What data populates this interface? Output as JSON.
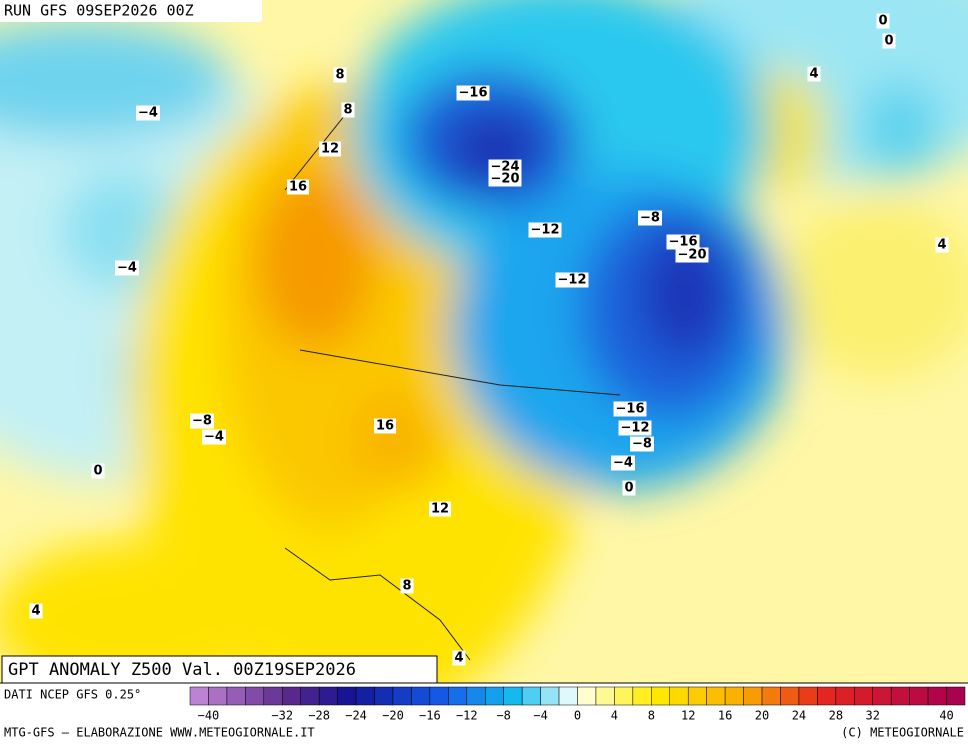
{
  "header": {
    "run": "RUN GFS 09SEP2026 00Z"
  },
  "map": {
    "title": "GPT ANOMALY Z500 Val. 00Z19SEP2026",
    "contour_labels": [
      "0",
      "0",
      "8",
      "4",
      "−16",
      "8",
      "−4",
      "12",
      "−24",
      "−20",
      "16",
      "−8",
      "−12",
      "−16",
      "4",
      "−20",
      "−4",
      "−12",
      "−8",
      "−16",
      "16",
      "−12",
      "−4",
      "−8",
      "−4",
      "0",
      "0",
      "12",
      "8",
      "4",
      "4"
    ]
  },
  "footer": {
    "source": "DATI NCEP GFS 0.25°",
    "credit": "MTG-GFS — ELABORAZIONE WWW.METEOGIORNALE.IT",
    "copyright": "(C) METEOGIORNALE"
  },
  "colorbar": {
    "labels": [
      "−40",
      "−32",
      "−28",
      "−24",
      "−20",
      "−16",
      "−12",
      "−8",
      "−4",
      "0",
      "4",
      "8",
      "12",
      "16",
      "20",
      "24",
      "28",
      "32",
      "40"
    ]
  }
}
